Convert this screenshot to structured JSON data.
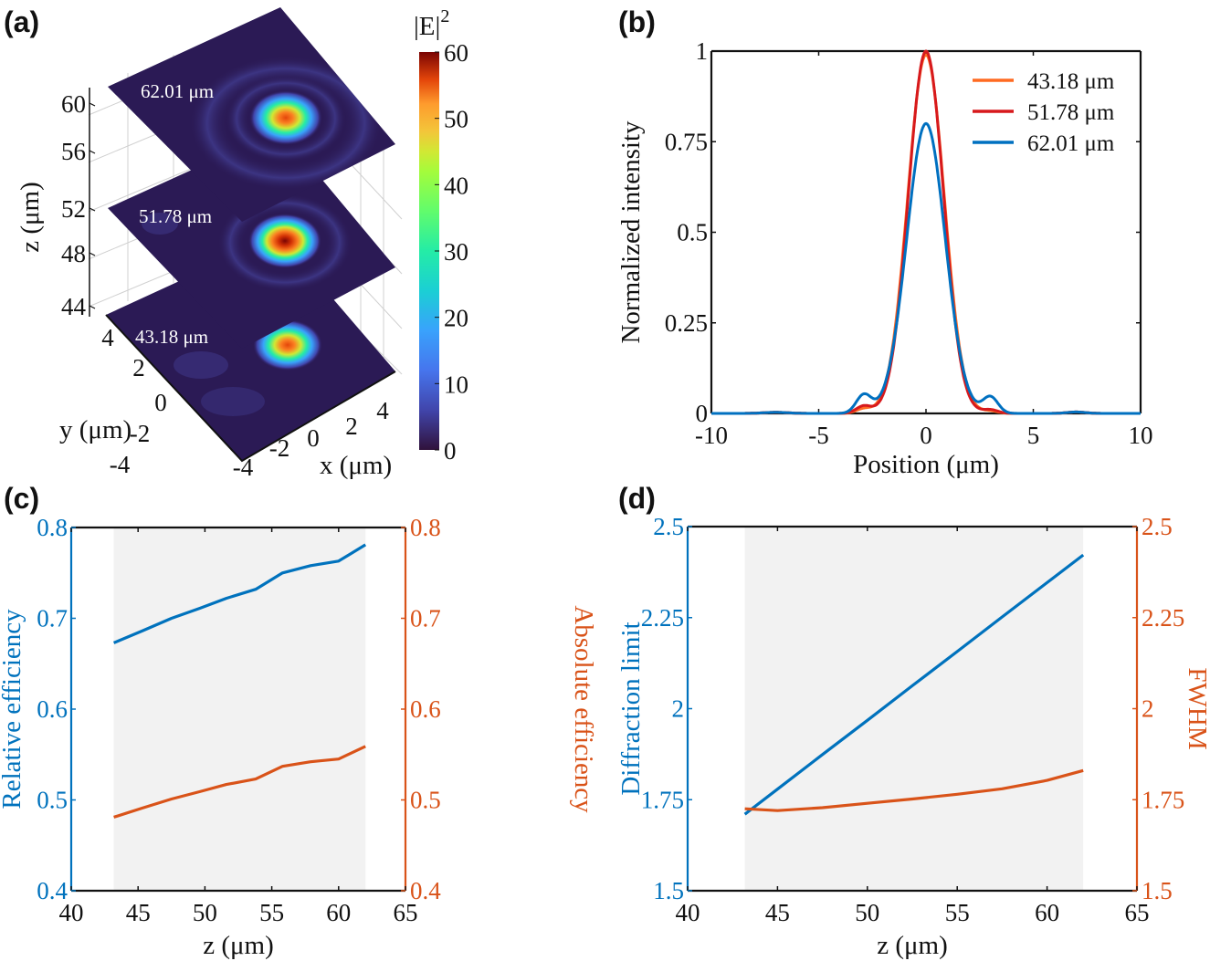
{
  "figure": {
    "panel_labels": [
      "(a)",
      "(b)",
      "(c)",
      "(d)"
    ]
  },
  "colors": {
    "blue": "#0072bd",
    "orange": "#d95319",
    "legend_orange": "#ff6a21",
    "legend_red": "#d7191c",
    "legend_blue": "#0070c0",
    "shade": "#f2f2f2",
    "axis": "#111111"
  },
  "chart_data": [
    {
      "id": "a",
      "type": "heatmap",
      "title": "",
      "colorbar_label": "|E|",
      "colorbar_label_sup": "2",
      "colorbar_range": [
        0,
        60
      ],
      "colorbar_ticks": [
        "0",
        "10",
        "20",
        "30",
        "40",
        "50",
        "60"
      ],
      "colormap": "turbo",
      "xlabel": "x (μm)",
      "ylabel": "y (μm)",
      "zlabel": "z (μm)",
      "xticks": [
        "-4",
        "-2",
        "0",
        "2",
        "4"
      ],
      "yticks": [
        "-4",
        "-2",
        "0",
        "2",
        "4"
      ],
      "zticks": [
        "44",
        "48",
        "52",
        "56",
        "60"
      ],
      "planes": [
        {
          "label": "62.01 μm",
          "z": 62.01,
          "peak": 52
        },
        {
          "label": "51.78 μm",
          "z": 51.78,
          "peak": 60
        },
        {
          "label": "43.18 μm",
          "z": 43.18,
          "peak": 52
        }
      ]
    },
    {
      "id": "b",
      "type": "line",
      "title": "",
      "xlabel": "Position (μm)",
      "ylabel": "Normalized intensity",
      "xlim": [
        -10,
        10
      ],
      "ylim": [
        0,
        1
      ],
      "xticks": [
        "-10",
        "-5",
        "0",
        "5",
        "10"
      ],
      "yticks": [
        "0",
        "0.25",
        "0.5",
        "0.75",
        "1"
      ],
      "legend_position": "top-right",
      "series": [
        {
          "name": "43.18 μm",
          "peak": 0.99,
          "sidelobe_left": 0.012,
          "sidelobe_right": 0.006
        },
        {
          "name": "51.78 μm",
          "peak": 1.0,
          "sidelobe_left": 0.02,
          "sidelobe_right": 0.01
        },
        {
          "name": "62.01 μm",
          "peak": 0.8,
          "sidelobe_left": 0.05,
          "sidelobe_right": 0.045
        }
      ]
    },
    {
      "id": "c",
      "type": "line",
      "title": "",
      "xlabel": "z (μm)",
      "ylabel": "Relative efficiency",
      "ylabel_right": "Absolute efficiency",
      "xlim": [
        40,
        65
      ],
      "ylim": [
        0.4,
        0.8
      ],
      "ylim_right": [
        0.4,
        0.8
      ],
      "xticks": [
        "40",
        "45",
        "50",
        "55",
        "60",
        "65"
      ],
      "yticks": [
        "0.4",
        "0.5",
        "0.6",
        "0.7",
        "0.8"
      ],
      "yticks_right": [
        "0.4",
        "0.5",
        "0.6",
        "0.7",
        "0.8"
      ],
      "shaded_range": [
        43.18,
        62.01
      ],
      "x": [
        43.18,
        45.3,
        47.5,
        49.6,
        51.6,
        53.8,
        55.8,
        57.9,
        60.0,
        62.01
      ],
      "series": [
        {
          "name": "Relative efficiency",
          "axis": "left",
          "values": [
            0.673,
            0.686,
            0.7,
            0.711,
            0.722,
            0.732,
            0.75,
            0.758,
            0.763,
            0.781
          ]
        },
        {
          "name": "Absolute efficiency",
          "axis": "right",
          "values": [
            0.481,
            0.491,
            0.501,
            0.509,
            0.517,
            0.523,
            0.537,
            0.542,
            0.545,
            0.559
          ]
        }
      ]
    },
    {
      "id": "d",
      "type": "line",
      "title": "",
      "xlabel": "z (μm)",
      "ylabel": "Diffraction limit",
      "ylabel_right": "FWHM",
      "xlim": [
        40,
        65
      ],
      "ylim": [
        1.5,
        2.5
      ],
      "ylim_right": [
        1.5,
        2.5
      ],
      "xticks": [
        "40",
        "45",
        "50",
        "55",
        "60",
        "65"
      ],
      "yticks": [
        "1.5",
        "1.75",
        "2",
        "2.25",
        "2.5"
      ],
      "yticks_right": [
        "1.5",
        "1.75",
        "2",
        "2.25",
        "2.5"
      ],
      "shaded_range": [
        43.18,
        62.01
      ],
      "x": [
        43.18,
        45,
        47.5,
        50,
        52.5,
        55,
        57.5,
        60,
        62.01
      ],
      "series": [
        {
          "name": "Diffraction limit",
          "axis": "left",
          "values": [
            1.71,
            1.779,
            1.874,
            1.968,
            2.063,
            2.157,
            2.252,
            2.346,
            2.422
          ]
        },
        {
          "name": "FWHM",
          "axis": "right",
          "values": [
            1.725,
            1.72,
            1.728,
            1.74,
            1.752,
            1.765,
            1.78,
            1.803,
            1.83
          ]
        }
      ]
    }
  ]
}
